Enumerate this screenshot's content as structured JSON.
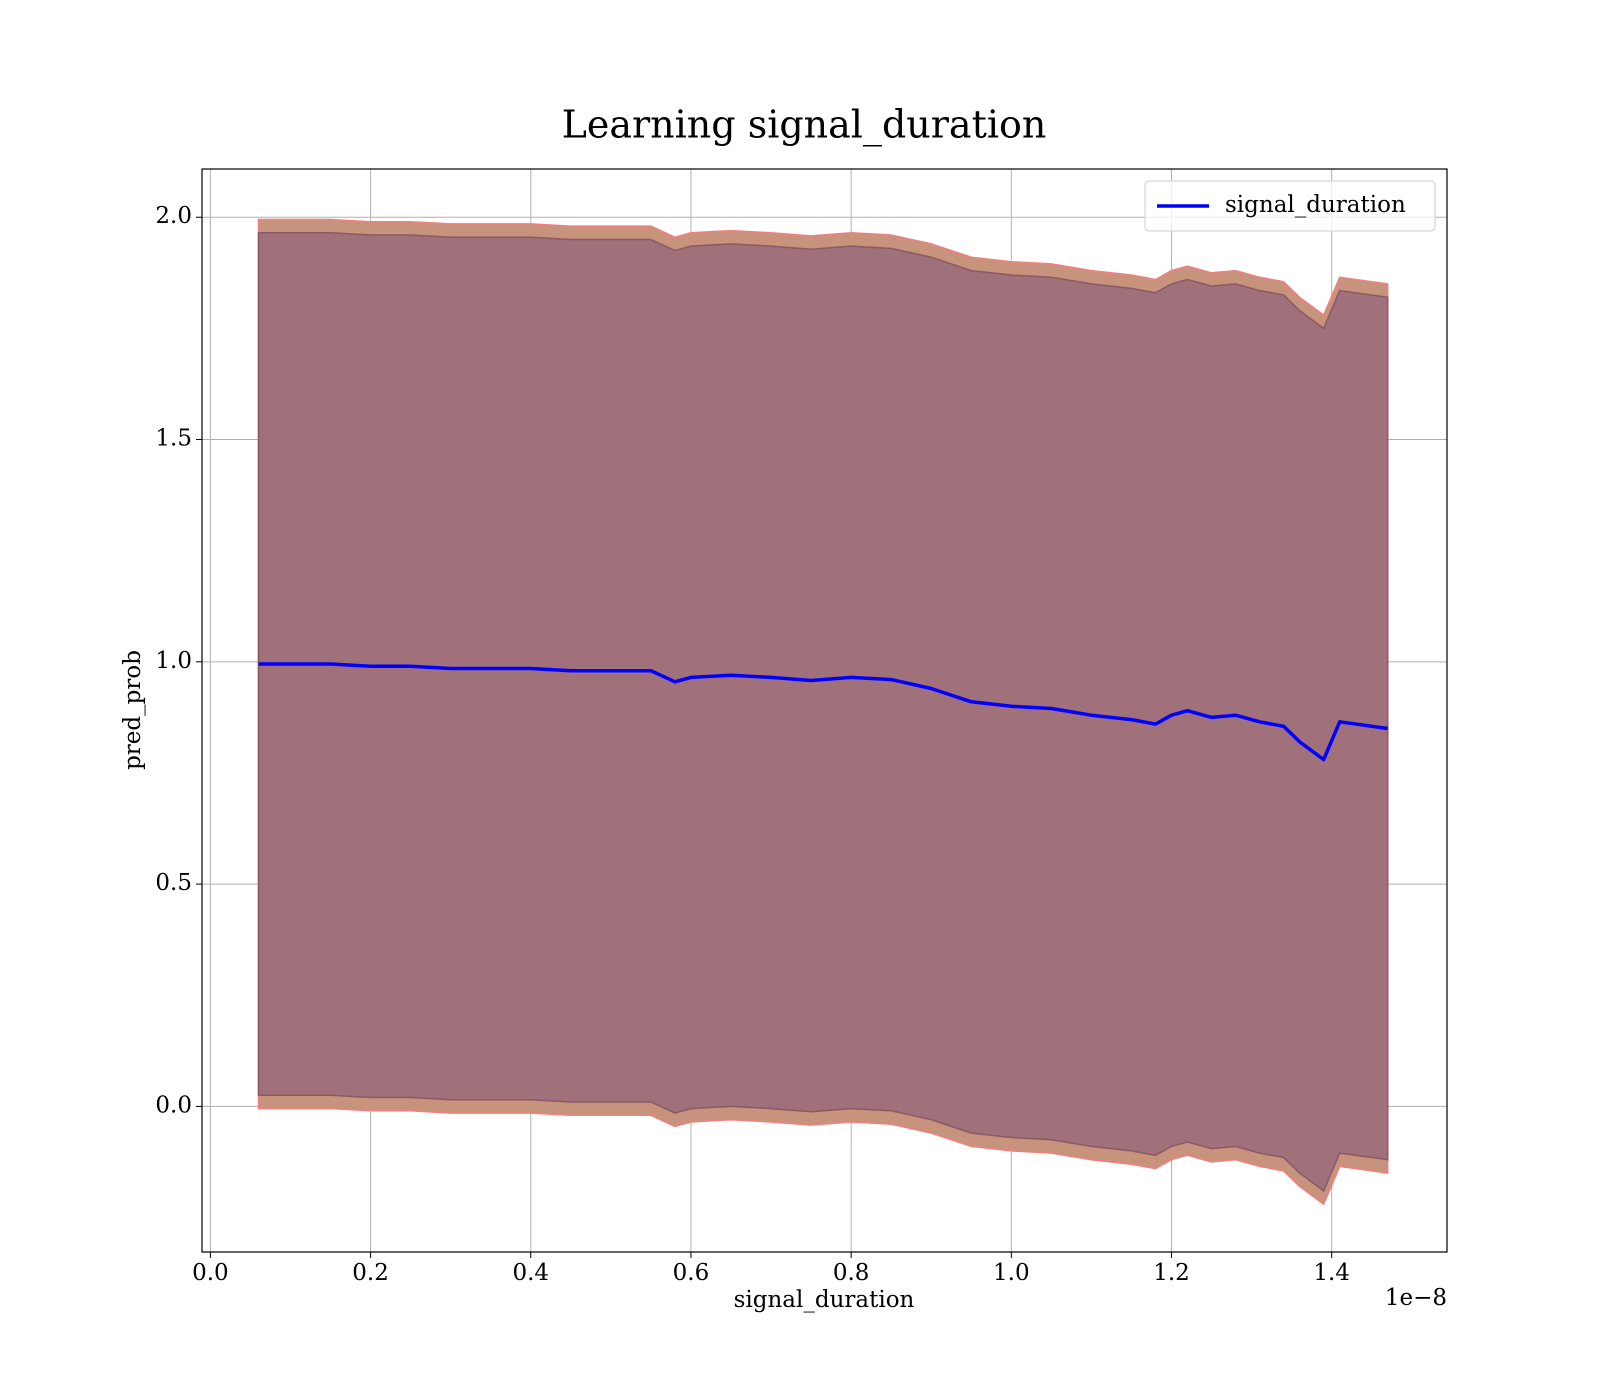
{
  "chart_data": {
    "type": "line",
    "title": "Learning signal_duration",
    "xlabel": "signal_duration",
    "ylabel": "pred_prob",
    "x_offset_label": "1e−8",
    "xlim": [
      -0.0105,
      1.544
    ],
    "ylim": [
      -0.3275,
      2.1085
    ],
    "xticks": [
      {
        "value": 0,
        "label": "0.0"
      },
      0.2,
      0.4,
      0.6,
      0.8,
      {
        "value": 1,
        "label": "1.0"
      },
      1.2,
      1.4
    ],
    "yticks": [
      {
        "value": 0,
        "label": "0.0"
      },
      0.5,
      {
        "value": 1,
        "label": "1.0"
      },
      1.5,
      {
        "value": 2,
        "label": "2.0"
      }
    ],
    "grid": true,
    "legend": "upper right",
    "x": [
      0.06,
      0.1,
      0.15,
      0.2,
      0.25,
      0.3,
      0.35,
      0.4,
      0.45,
      0.5,
      0.55,
      0.58,
      0.6,
      0.65,
      0.7,
      0.75,
      0.8,
      0.85,
      0.9,
      0.95,
      1.0,
      1.05,
      1.1,
      1.15,
      1.18,
      1.2,
      1.22,
      1.25,
      1.28,
      1.31,
      1.34,
      1.36,
      1.39,
      1.41,
      1.47
    ],
    "bands": [
      {
        "color": "#c8937c",
        "edge_color": "#f08080",
        "upper": [
          1.995,
          1.995,
          1.995,
          1.99,
          1.99,
          1.985,
          1.985,
          1.985,
          1.98,
          1.98,
          1.98,
          1.955,
          1.965,
          1.97,
          1.965,
          1.958,
          1.965,
          1.96,
          1.94,
          1.91,
          1.9,
          1.895,
          1.88,
          1.87,
          1.86,
          1.88,
          1.89,
          1.875,
          1.88,
          1.865,
          1.855,
          1.82,
          1.78,
          1.865,
          1.85
        ],
        "lower": [
          -0.005,
          -0.005,
          -0.005,
          -0.01,
          -0.01,
          -0.015,
          -0.015,
          -0.015,
          -0.02,
          -0.02,
          -0.02,
          -0.045,
          -0.035,
          -0.03,
          -0.035,
          -0.042,
          -0.035,
          -0.04,
          -0.06,
          -0.09,
          -0.1,
          -0.105,
          -0.12,
          -0.13,
          -0.14,
          -0.12,
          -0.11,
          -0.125,
          -0.12,
          -0.135,
          -0.145,
          -0.18,
          -0.22,
          -0.135,
          -0.15
        ]
      },
      {
        "color": "#a0717a",
        "edge_color": "#8a5a64",
        "upper": [
          1.965,
          1.965,
          1.965,
          1.96,
          1.96,
          1.955,
          1.955,
          1.955,
          1.95,
          1.95,
          1.95,
          1.925,
          1.935,
          1.94,
          1.935,
          1.928,
          1.935,
          1.93,
          1.91,
          1.88,
          1.87,
          1.865,
          1.85,
          1.84,
          1.83,
          1.85,
          1.86,
          1.845,
          1.85,
          1.835,
          1.825,
          1.79,
          1.75,
          1.835,
          1.82
        ],
        "lower": [
          0.025,
          0.025,
          0.025,
          0.02,
          0.02,
          0.015,
          0.015,
          0.015,
          0.01,
          0.01,
          0.01,
          -0.015,
          -0.005,
          0,
          -0.005,
          -0.012,
          -0.005,
          -0.01,
          -0.03,
          -0.06,
          -0.07,
          -0.075,
          -0.09,
          -0.1,
          -0.11,
          -0.09,
          -0.08,
          -0.095,
          -0.09,
          -0.105,
          -0.115,
          -0.15,
          -0.19,
          -0.105,
          -0.12
        ]
      }
    ],
    "series": [
      {
        "name": "signal_duration",
        "color": "#0000ff",
        "values": [
          0.995,
          0.995,
          0.995,
          0.99,
          0.99,
          0.985,
          0.985,
          0.985,
          0.98,
          0.98,
          0.98,
          0.955,
          0.965,
          0.97,
          0.965,
          0.958,
          0.965,
          0.96,
          0.94,
          0.91,
          0.9,
          0.895,
          0.88,
          0.87,
          0.86,
          0.88,
          0.89,
          0.875,
          0.88,
          0.865,
          0.855,
          0.82,
          0.78,
          0.865,
          0.85
        ]
      }
    ]
  }
}
